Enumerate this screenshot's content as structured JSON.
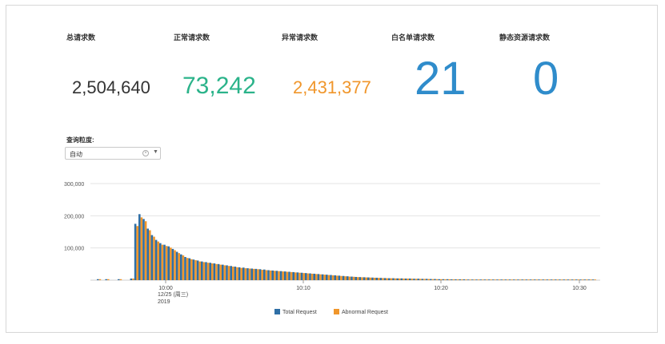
{
  "stats": [
    {
      "label": "总请求数",
      "value": "2,504,640",
      "color": "#333333"
    },
    {
      "label": "正常请求数",
      "value": "73,242",
      "color": "#2bb38a"
    },
    {
      "label": "异常请求数",
      "value": "2,431,377",
      "color": "#f0962b"
    },
    {
      "label": "白名单请求数",
      "value": "21",
      "color": "#2f8ccb"
    },
    {
      "label": "静态资源请求数",
      "value": "0",
      "color": "#2f8ccb"
    }
  ],
  "filter": {
    "label": "查询粒度:",
    "value": "自动",
    "clear_icon": "clear-circle-icon",
    "caret_icon": "caret-down-icon"
  },
  "chart_data": {
    "type": "bar",
    "y_ticks": [
      "300,000",
      "200,000",
      "100,000"
    ],
    "ylim": [
      0,
      300000
    ],
    "x_ticks": [
      "10:00",
      "10:10",
      "10:20",
      "10:30"
    ],
    "x_subtick": {
      "date": "12/25 (周三)",
      "year": "2019"
    },
    "grid": true,
    "legend_position": "bottom",
    "series": [
      {
        "name": "Total Request",
        "color": "#2f6fa6",
        "values": [
          3000,
          0,
          3000,
          0,
          0,
          3000,
          0,
          0,
          5000,
          175000,
          205000,
          190000,
          160000,
          140000,
          125000,
          115000,
          110000,
          105000,
          97000,
          88000,
          80000,
          72000,
          68000,
          64000,
          61000,
          58000,
          56000,
          54000,
          52000,
          50000,
          48000,
          46000,
          44000,
          42000,
          40000,
          39000,
          37000,
          36000,
          35000,
          34000,
          33000,
          31000,
          30000,
          29000,
          28000,
          27000,
          26000,
          25000,
          24000,
          23000,
          22000,
          21000,
          20000,
          19000,
          18000,
          17000,
          16000,
          15000,
          14000,
          13000,
          12000,
          11000,
          10000,
          9500,
          9000,
          8500,
          8000,
          7500,
          7000,
          6500,
          6000,
          6000,
          5500,
          5500,
          5000,
          5000,
          4500,
          4500,
          4000,
          4000,
          3500,
          3500,
          3000,
          3000,
          3000,
          2500,
          2500,
          2500,
          2500,
          2000,
          2000,
          2000,
          2000,
          2000,
          2000,
          2000,
          2000,
          2000,
          2000,
          2000,
          2000,
          2000,
          2000,
          2000,
          2000,
          2000,
          2000,
          2000,
          2000,
          2000,
          2000,
          2000,
          2000,
          2000,
          2000,
          2000,
          2000,
          2000,
          2000,
          2000,
          2000
        ]
      },
      {
        "name": "Abnormal Request",
        "color": "#f0962b",
        "values": [
          3000,
          0,
          3000,
          0,
          0,
          3000,
          0,
          0,
          5000,
          168000,
          195000,
          183000,
          155000,
          135000,
          120000,
          110000,
          106000,
          101000,
          93000,
          84000,
          77000,
          69000,
          65000,
          62000,
          58000,
          56000,
          54000,
          52000,
          50000,
          48000,
          46000,
          44000,
          42000,
          40000,
          38000,
          37000,
          36000,
          35000,
          34000,
          32000,
          31000,
          30000,
          29000,
          28000,
          27000,
          26000,
          25000,
          24000,
          23000,
          22000,
          21000,
          20000,
          19000,
          18000,
          17000,
          16000,
          15000,
          14000,
          13000,
          12000,
          11000,
          10500,
          9500,
          9000,
          8500,
          8000,
          7500,
          7000,
          6500,
          6000,
          5800,
          5500,
          5200,
          5000,
          4800,
          4500,
          4200,
          4000,
          3800,
          3500,
          3200,
          3000,
          2900,
          2800,
          2700,
          2500,
          2400,
          2300,
          2200,
          2000,
          2000,
          2000,
          2000,
          2000,
          2000,
          2000,
          2000,
          2000,
          2000,
          2000,
          2000,
          2000,
          2000,
          2000,
          2000,
          2000,
          2000,
          2000,
          2000,
          2000,
          2000,
          2000,
          2000,
          2000,
          2000,
          2000,
          2000,
          2000,
          2000,
          2000,
          2000
        ]
      }
    ]
  }
}
